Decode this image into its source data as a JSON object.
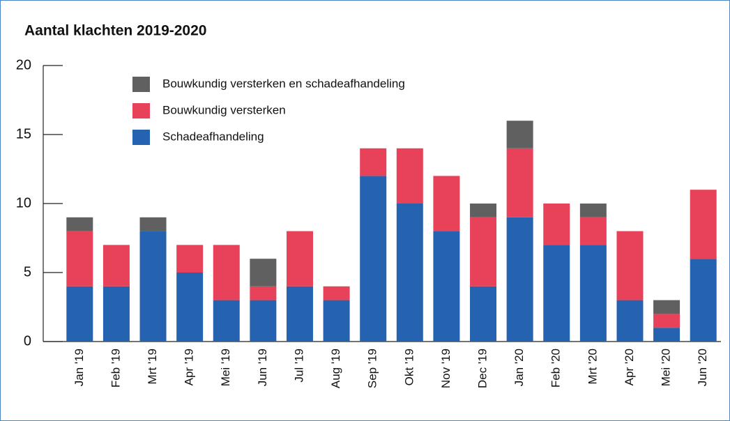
{
  "chart_data": {
    "type": "stacked_bar",
    "title": "Aantal klachten 2019-2020",
    "categories": [
      "Jan '19",
      "Feb '19",
      "Mrt '19",
      "Apr '19",
      "Mei '19",
      "Jun '19",
      "Jul '19",
      "Aug '19",
      "Sep '19",
      "Okt '19",
      "Nov '19",
      "Dec '19",
      "Jan '20",
      "Feb '20",
      "Mrt '20",
      "Apr '20",
      "Mei '20",
      "Jun '20"
    ],
    "series": [
      {
        "name": "Bouwkundig versterken en schadeafhandeling",
        "color": "#606060",
        "values": [
          1,
          0,
          1,
          0,
          0,
          2,
          0,
          0,
          0,
          0,
          0,
          1,
          2,
          0,
          1,
          0,
          1,
          0
        ]
      },
      {
        "name": "Bouwkundig versterken",
        "color": "#e8415a",
        "values": [
          4,
          3,
          0,
          2,
          4,
          1,
          4,
          1,
          2,
          4,
          4,
          5,
          5,
          3,
          2,
          5,
          1,
          5
        ]
      },
      {
        "name": "Schadeafhandeling",
        "color": "#2563b0",
        "values": [
          4,
          4,
          8,
          5,
          3,
          3,
          4,
          3,
          12,
          10,
          8,
          4,
          9,
          7,
          7,
          3,
          1,
          6
        ]
      }
    ],
    "ylim": [
      0,
      20
    ],
    "yticks": [
      0,
      5,
      10,
      15,
      20
    ],
    "legend": "top-left"
  }
}
